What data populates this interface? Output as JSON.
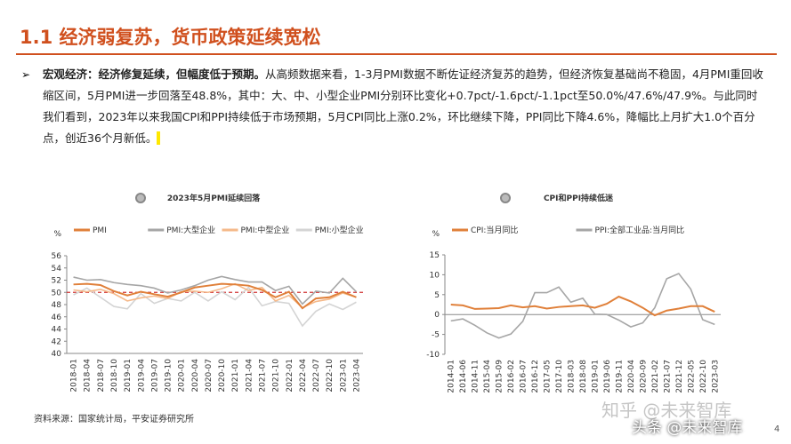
{
  "header": {
    "title": "1.1 经济弱复苏，货币政策延续宽松"
  },
  "bullet": {
    "lead": "宏观经济：经济修复延续，但幅度低于预期。",
    "text": "从高频数据来看，1-3月PMI数据不断佐证经济复苏的趋势，但经济恢复基础尚不稳固，4月PMI重回收缩区间，5月PMI进一步回落至48.8%，其中：大、中、小型企业PMI分别环比变化+0.7pct/-1.6pct/-1.1pct至50.0%/47.6%/47.9%。与此同时我们看到，2023年以来我国CPI和PPI持续低于市场预期，5月CPI同比上涨0.2%，环比继续下降，PPI同比下降4.6%，降幅比上月扩大1.0个百分点，创近36个月新低。"
  },
  "chart_data": [
    {
      "type": "line",
      "title": "2023年5月PMI延续回落",
      "y_label": "%",
      "categories": [
        "2018-01",
        "2018-04",
        "2018-07",
        "2018-10",
        "2019-01",
        "2019-04",
        "2019-07",
        "2019-10",
        "2020-01",
        "2020-04",
        "2020-07",
        "2020-10",
        "2021-01",
        "2021-04",
        "2021-07",
        "2021-10",
        "2022-01",
        "2022-04",
        "2022-07",
        "2022-10",
        "2023-01",
        "2023-04"
      ],
      "series": [
        {
          "name": "PMI",
          "color": "#e0803a",
          "values": [
            51.3,
            51.4,
            51.2,
            50.2,
            49.5,
            50.1,
            49.7,
            49.3,
            50.0,
            50.8,
            51.1,
            51.4,
            51.3,
            51.1,
            50.4,
            49.2,
            50.1,
            47.4,
            49.0,
            49.2,
            50.1,
            49.2
          ]
        },
        {
          "name": "PMI:大型企业",
          "color": "#a6a6a6",
          "values": [
            52.5,
            52.0,
            52.1,
            51.6,
            51.3,
            51.1,
            50.7,
            49.9,
            50.4,
            51.1,
            52.0,
            52.6,
            52.1,
            51.7,
            51.7,
            50.3,
            51.0,
            48.1,
            50.2,
            49.9,
            52.3,
            50.1
          ]
        },
        {
          "name": "PMI:中型企业",
          "color": "#f5b98a",
          "values": [
            50.4,
            50.1,
            50.5,
            49.8,
            48.6,
            49.1,
            49.4,
            49.0,
            50.1,
            50.2,
            50.0,
            50.6,
            51.4,
            50.3,
            50.8,
            48.6,
            49.5,
            47.5,
            48.5,
            48.9,
            49.9,
            49.2
          ]
        },
        {
          "name": "PMI:小型企业",
          "color": "#d4d4d4",
          "values": [
            49.6,
            50.7,
            49.2,
            47.7,
            47.3,
            49.8,
            48.2,
            49.0,
            48.6,
            50.0,
            48.6,
            50.1,
            48.8,
            50.8,
            47.8,
            48.5,
            48.2,
            44.5,
            46.9,
            48.1,
            47.2,
            48.4
          ]
        }
      ],
      "reference_lines": [
        50
      ],
      "ylim": [
        40,
        56
      ],
      "yticks": [
        40,
        42,
        44,
        46,
        48,
        50,
        52,
        54,
        56
      ]
    },
    {
      "type": "line",
      "title": "CPI和PPI持续低迷",
      "y_label": "%",
      "categories": [
        "2014-01",
        "2014-06",
        "2014-11",
        "2015-04",
        "2015-09",
        "2016-02",
        "2016-07",
        "2016-12",
        "2017-05",
        "2017-10",
        "2018-03",
        "2018-08",
        "2019-01",
        "2019-06",
        "2019-11",
        "2020-04",
        "2020-09",
        "2021-02",
        "2021-07",
        "2021-12",
        "2022-05",
        "2022-10",
        "2023-03"
      ],
      "series": [
        {
          "name": "CPI:当月同比",
          "color": "#e0803a",
          "values": [
            2.5,
            2.3,
            1.4,
            1.5,
            1.6,
            2.3,
            1.8,
            2.1,
            1.5,
            1.9,
            2.1,
            2.3,
            1.7,
            2.7,
            4.5,
            3.3,
            1.7,
            -0.2,
            1.0,
            1.5,
            2.1,
            2.1,
            0.7
          ]
        },
        {
          "name": "PPI:全部工业品:当月同比",
          "color": "#a6a6a6",
          "values": [
            -1.6,
            -1.1,
            -2.7,
            -4.6,
            -5.9,
            -4.9,
            -1.7,
            5.5,
            5.5,
            6.9,
            3.1,
            4.1,
            0.1,
            0.0,
            -1.4,
            -3.1,
            -2.1,
            1.7,
            9.0,
            10.3,
            6.4,
            -1.3,
            -2.5
          ]
        }
      ],
      "ylim": [
        -10,
        15
      ],
      "yticks": [
        -10,
        -5,
        0,
        5,
        10,
        15
      ]
    }
  ],
  "footer": {
    "source": "资料来源：国家统计局，平安证券研究所",
    "page": "4",
    "watermark1": "知乎 @未来智库",
    "watermark2": "头条 @未来智库"
  }
}
